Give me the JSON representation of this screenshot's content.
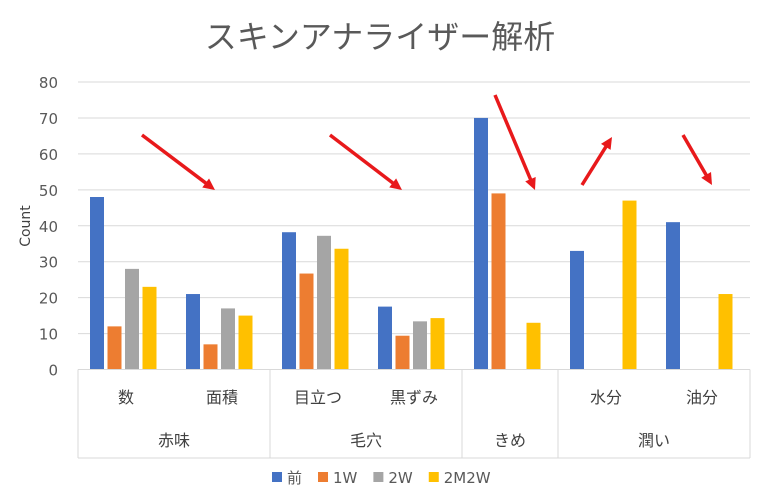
{
  "chart_data": {
    "type": "bar",
    "title": "スキンアナライザー解析",
    "ylabel": "Count",
    "ylim": [
      0,
      80
    ],
    "yticks": [
      0,
      10,
      20,
      30,
      40,
      50,
      60,
      70,
      80
    ],
    "grid": true,
    "legend_position": "bottom",
    "groups": [
      {
        "label": "赤味",
        "categories": [
          "数",
          "面積"
        ]
      },
      {
        "label": "毛穴",
        "categories": [
          "目立つ",
          "黒ずみ"
        ]
      },
      {
        "label": "きめ",
        "categories": [
          ""
        ]
      },
      {
        "label": "潤い",
        "categories": [
          "水分",
          "油分"
        ]
      }
    ],
    "categories": [
      "数",
      "面積",
      "目立つ",
      "黒ずみ",
      "",
      "水分",
      "油分"
    ],
    "series": [
      {
        "name": "前",
        "color": "#4472C4",
        "values": [
          48,
          21,
          38.2,
          17.5,
          70,
          33,
          41
        ]
      },
      {
        "name": "1W",
        "color": "#ED7D31",
        "values": [
          12,
          7,
          26.7,
          9.4,
          49,
          null,
          null
        ]
      },
      {
        "name": "2W",
        "color": "#A5A5A5",
        "values": [
          28,
          17,
          37.2,
          13.4,
          null,
          null,
          null
        ]
      },
      {
        "name": "2M2W",
        "color": "#FFC000",
        "values": [
          23,
          15,
          33.6,
          14.3,
          13,
          47,
          21
        ]
      }
    ],
    "annotations": {
      "arrow_color": "#E8191B",
      "arrows": [
        "down",
        "down",
        "down",
        "up",
        "down"
      ]
    }
  }
}
